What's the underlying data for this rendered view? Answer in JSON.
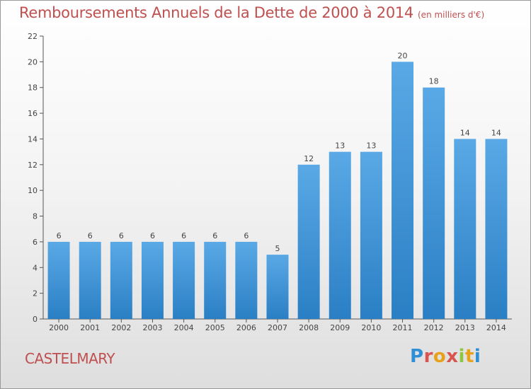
{
  "title": "Remboursements Annuels de la Dette de 2000 à 2014",
  "unit": "(en milliers d'€)",
  "commune": "CASTELMARY",
  "logo": "Proxiti",
  "colors": {
    "bar_top": "#5aa9e6",
    "bar_bottom": "#2a7fc4",
    "title": "#c04f4f"
  },
  "chart_data": {
    "type": "bar",
    "title": "Remboursements Annuels de la Dette de 2000 à 2014",
    "xlabel": "",
    "ylabel": "",
    "categories": [
      "2000",
      "2001",
      "2002",
      "2003",
      "2004",
      "2005",
      "2006",
      "2007",
      "2008",
      "2009",
      "2010",
      "2011",
      "2012",
      "2013",
      "2014"
    ],
    "values": [
      6,
      6,
      6,
      6,
      6,
      6,
      6,
      5,
      12,
      13,
      13,
      20,
      18,
      14,
      14
    ],
    "ylim": [
      0,
      22
    ],
    "yticks": [
      0,
      2,
      4,
      6,
      8,
      10,
      12,
      14,
      16,
      18,
      20,
      22
    ],
    "grid": false,
    "legend": "none"
  }
}
